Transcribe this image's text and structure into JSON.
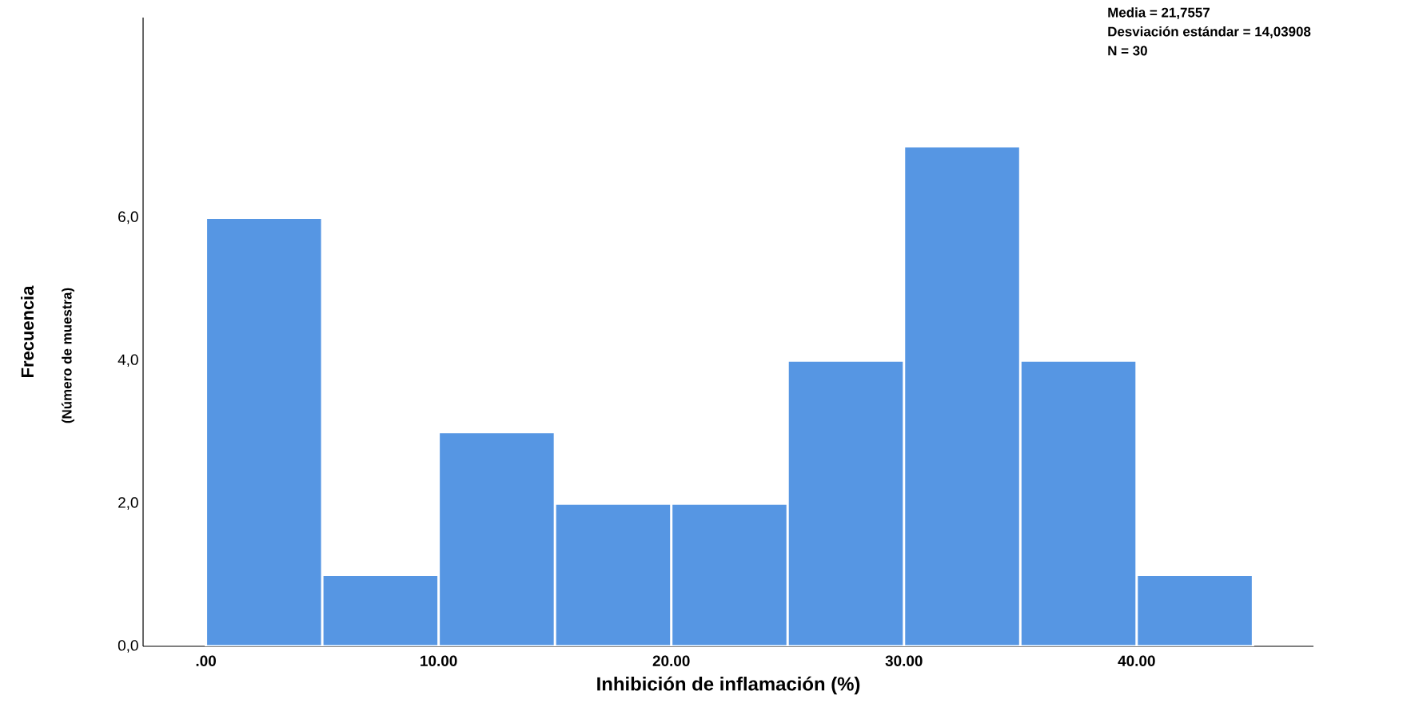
{
  "chart_data": {
    "type": "histogram",
    "xlabel": "Inhibición de inflamación (%)",
    "ylabel": "Frecuencia",
    "annotations": [
      "(Número de muestra)",
      "Media = 21,7557",
      "Desviación estándar = 14,03908",
      "N = 30"
    ],
    "bins": [
      0,
      5,
      10,
      15,
      20,
      25,
      30,
      35,
      40,
      45
    ],
    "values": [
      6,
      1,
      3,
      2,
      2,
      4,
      7,
      4,
      1
    ],
    "color": "#5696e3",
    "xlim": [
      -2.7,
      47.6
    ],
    "ylim": [
      0,
      8.8
    ],
    "xticks": [
      {
        "value": 0,
        "label": ".00"
      },
      {
        "value": 10,
        "label": "10.00"
      },
      {
        "value": 20,
        "label": "20.00"
      },
      {
        "value": 30,
        "label": "30.00"
      },
      {
        "value": 40,
        "label": "40.00"
      }
    ],
    "yticks": [
      {
        "value": 0,
        "label": "0,0"
      },
      {
        "value": 2,
        "label": "2,0"
      },
      {
        "value": 4,
        "label": "4,0"
      },
      {
        "value": 6,
        "label": "6,0"
      }
    ]
  }
}
